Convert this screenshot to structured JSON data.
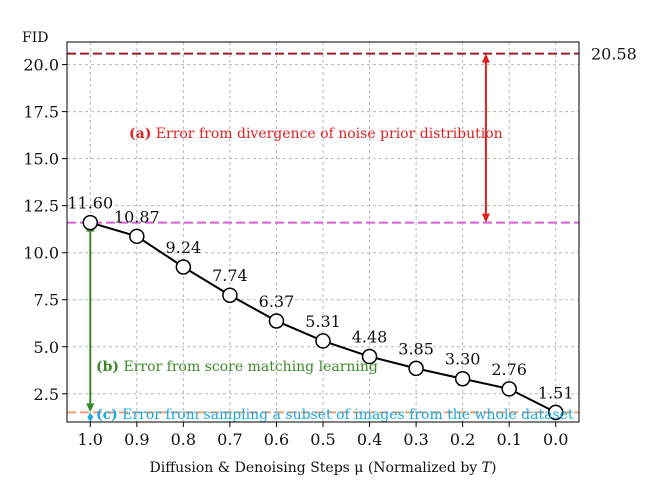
{
  "chart_data": {
    "type": "line",
    "xlabel_prefix": "Diffusion & Denoising Steps μ (Normalized by ",
    "xlabel_var": "T",
    "xlabel_suffix": ")",
    "ylabel": "FID",
    "xlim": [
      1.05,
      -0.05
    ],
    "ylim": [
      1.0,
      21.2
    ],
    "x_ticks": [
      "1.0",
      "0.9",
      "0.8",
      "0.7",
      "0.6",
      "0.5",
      "0.4",
      "0.3",
      "0.2",
      "0.1",
      "0.0"
    ],
    "y_ticks": [
      "2.5",
      "5.0",
      "7.5",
      "10.0",
      "12.5",
      "15.0",
      "17.5",
      "20.0"
    ],
    "grid": true,
    "series": [
      {
        "x": [
          1.0,
          0.9,
          0.8,
          0.7,
          0.6,
          0.5,
          0.4,
          0.3,
          0.2,
          0.1,
          0.0
        ],
        "values": [
          11.6,
          10.87,
          9.24,
          7.74,
          6.37,
          5.31,
          4.48,
          3.85,
          3.3,
          2.76,
          1.51
        ],
        "labels": [
          "11.60",
          "10.87",
          "9.24",
          "7.74",
          "6.37",
          "5.31",
          "4.48",
          "3.85",
          "3.30",
          "2.76",
          "1.51"
        ],
        "color": "#000000"
      }
    ],
    "reference_lines": [
      {
        "y": 20.58,
        "label": "20.58",
        "color": "#9b1c2a"
      },
      {
        "y": 11.6,
        "color": "#d65fd6"
      },
      {
        "y": 1.51,
        "color": "#f0a070"
      }
    ],
    "annotations": [
      {
        "bold": "(a)",
        "text": " Error from divergence of noise prior distribution",
        "color": "#e02020"
      },
      {
        "bold": "(b)",
        "text": " Error from score matching learning",
        "color": "#3a8a2a"
      },
      {
        "bold": "(c)",
        "text": " Error from sampling a subset of images from the whole dataset",
        "color": "#1aa8e0"
      }
    ]
  }
}
